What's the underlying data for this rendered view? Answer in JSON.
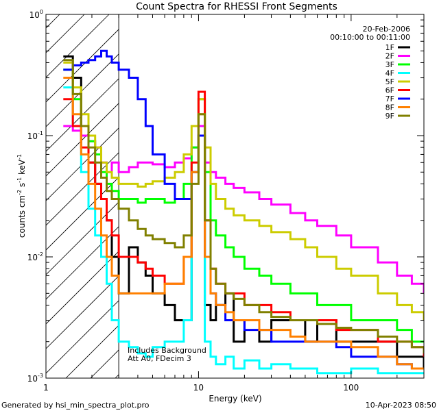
{
  "chart_data": {
    "type": "line",
    "title": "Count Spectra for RHESSI Front Segments",
    "xlabel": "Energy (keV)",
    "ylabel": {
      "base": "counts cm",
      "sup1": "-2",
      "mid1": " s",
      "sup2": "-1",
      "mid2": " keV",
      "sup3": "-1"
    },
    "xscale": "log",
    "yscale": "log",
    "xlim": [
      1,
      300
    ],
    "ylim": [
      0.001,
      1
    ],
    "x_ticks": [
      {
        "value": 1,
        "label": "1"
      },
      {
        "value": 10,
        "label": "10"
      },
      {
        "value": 100,
        "label": "100"
      }
    ],
    "y_ticks": [
      {
        "value": 1,
        "base": "10",
        "exp": "0"
      },
      {
        "value": 0.1,
        "base": "10",
        "exp": "-1"
      },
      {
        "value": 0.01,
        "base": "10",
        "exp": "-2"
      },
      {
        "value": 0.001,
        "base": "10",
        "exp": "-3"
      }
    ],
    "hatched_region": {
      "x_range": [
        1,
        3
      ]
    },
    "date_text": "20-Feb-2006",
    "time_text": "00:10:00 to 00:11:00",
    "annotations": [
      "Includes Background",
      "Att A0, FDecim 3"
    ],
    "legend_position": "top-right",
    "series": [
      {
        "name": "1F",
        "color": "#000000",
        "x": [
          1.3,
          1.5,
          1.7,
          1.9,
          2.1,
          2.3,
          2.5,
          2.7,
          3.0,
          3.5,
          4,
          4.5,
          5,
          6,
          7,
          8,
          9,
          10,
          11,
          12,
          13,
          15,
          17,
          20,
          25,
          30,
          40,
          50,
          60,
          80,
          100,
          150,
          200,
          250,
          300
        ],
        "y": [
          0.45,
          0.3,
          0.1,
          0.06,
          0.04,
          0.03,
          0.02,
          0.01,
          0.005,
          0.012,
          0.009,
          0.007,
          0.005,
          0.004,
          0.003,
          0.003,
          0.05,
          0.1,
          0.004,
          0.003,
          0.004,
          0.005,
          0.002,
          0.003,
          0.002,
          0.003,
          0.003,
          0.002,
          0.003,
          0.002,
          0.002,
          0.002,
          0.0015,
          0.0015,
          0.0012
        ]
      },
      {
        "name": "2F",
        "color": "#ff00ff",
        "x": [
          1.3,
          1.5,
          1.7,
          1.9,
          2.1,
          2.3,
          2.5,
          2.7,
          3.0,
          3.5,
          4,
          4.5,
          5,
          6,
          7,
          8,
          9,
          10,
          11,
          12,
          13,
          15,
          17,
          20,
          25,
          30,
          40,
          50,
          60,
          80,
          100,
          150,
          200,
          250,
          300
        ],
        "y": [
          0.12,
          0.11,
          0.1,
          0.09,
          0.08,
          0.06,
          0.05,
          0.06,
          0.05,
          0.055,
          0.06,
          0.06,
          0.058,
          0.055,
          0.06,
          0.065,
          0.08,
          0.12,
          0.06,
          0.05,
          0.045,
          0.04,
          0.037,
          0.034,
          0.03,
          0.027,
          0.023,
          0.02,
          0.018,
          0.015,
          0.012,
          0.009,
          0.007,
          0.006,
          0.005
        ]
      },
      {
        "name": "3F",
        "color": "#00ff00",
        "x": [
          1.3,
          1.5,
          1.7,
          1.9,
          2.1,
          2.3,
          2.5,
          2.7,
          3.0,
          3.5,
          4,
          4.5,
          5,
          6,
          7,
          8,
          9,
          10,
          11,
          12,
          13,
          15,
          17,
          20,
          25,
          30,
          40,
          50,
          60,
          80,
          100,
          150,
          200,
          250,
          300
        ],
        "y": [
          0.35,
          0.2,
          0.12,
          0.09,
          0.07,
          0.05,
          0.04,
          0.035,
          0.03,
          0.03,
          0.028,
          0.03,
          0.03,
          0.028,
          0.03,
          0.04,
          0.08,
          0.2,
          0.05,
          0.02,
          0.015,
          0.012,
          0.01,
          0.008,
          0.007,
          0.006,
          0.005,
          0.005,
          0.004,
          0.004,
          0.003,
          0.003,
          0.0025,
          0.002,
          0.002
        ]
      },
      {
        "name": "4F",
        "color": "#00ffff",
        "x": [
          1.3,
          1.5,
          1.7,
          1.9,
          2.1,
          2.3,
          2.5,
          2.7,
          3.0,
          3.5,
          4,
          4.5,
          5,
          6,
          7,
          8,
          9,
          10,
          11,
          12,
          13,
          15,
          17,
          20,
          25,
          30,
          40,
          50,
          60,
          80,
          100,
          150,
          200,
          250,
          300
        ],
        "y": [
          0.25,
          0.12,
          0.05,
          0.025,
          0.015,
          0.01,
          0.006,
          0.003,
          0.002,
          0.0018,
          0.0016,
          0.0015,
          0.0018,
          0.002,
          0.002,
          0.003,
          0.05,
          0.1,
          0.002,
          0.0015,
          0.0013,
          0.0015,
          0.0012,
          0.0014,
          0.0012,
          0.0013,
          0.0012,
          0.0012,
          0.0011,
          0.0011,
          0.0012,
          0.0011,
          0.0011,
          0.0011,
          0.0011
        ]
      },
      {
        "name": "5F",
        "color": "#cccc00",
        "x": [
          1.3,
          1.5,
          1.7,
          1.9,
          2.1,
          2.3,
          2.5,
          2.7,
          3.0,
          3.5,
          4,
          4.5,
          5,
          6,
          7,
          8,
          9,
          10,
          11,
          12,
          13,
          15,
          17,
          20,
          25,
          30,
          40,
          50,
          60,
          80,
          100,
          150,
          200,
          250,
          300
        ],
        "y": [
          0.4,
          0.25,
          0.15,
          0.1,
          0.08,
          0.06,
          0.05,
          0.045,
          0.04,
          0.04,
          0.038,
          0.04,
          0.042,
          0.045,
          0.05,
          0.07,
          0.12,
          0.2,
          0.08,
          0.04,
          0.03,
          0.025,
          0.022,
          0.02,
          0.018,
          0.016,
          0.014,
          0.012,
          0.01,
          0.008,
          0.007,
          0.005,
          0.004,
          0.0035,
          0.003
        ]
      },
      {
        "name": "6F",
        "color": "#ff0000",
        "x": [
          1.3,
          1.5,
          1.7,
          1.9,
          2.1,
          2.3,
          2.5,
          2.7,
          3.0,
          3.5,
          4,
          4.5,
          5,
          6,
          7,
          8,
          9,
          10,
          11,
          12,
          13,
          15,
          17,
          20,
          25,
          30,
          40,
          50,
          60,
          80,
          100,
          150,
          200,
          250,
          300
        ],
        "y": [
          0.2,
          0.12,
          0.08,
          0.06,
          0.04,
          0.03,
          0.02,
          0.015,
          0.01,
          0.01,
          0.009,
          0.008,
          0.007,
          0.006,
          0.006,
          0.01,
          0.06,
          0.23,
          0.02,
          0.008,
          0.006,
          0.005,
          0.005,
          0.004,
          0.004,
          0.0035,
          0.003,
          0.003,
          0.003,
          0.0025,
          0.0025,
          0.002,
          0.002,
          0.0018,
          0.0015
        ]
      },
      {
        "name": "7F",
        "color": "#0000ff",
        "x": [
          1.3,
          1.5,
          1.7,
          1.9,
          2.1,
          2.3,
          2.5,
          2.7,
          3.0,
          3.5,
          4,
          4.5,
          5,
          6,
          7,
          8,
          9,
          10,
          11,
          12,
          13,
          15,
          17,
          20,
          25,
          30,
          40,
          50,
          60,
          80,
          100,
          150,
          200,
          250,
          300
        ],
        "y": [
          0.35,
          0.38,
          0.4,
          0.42,
          0.45,
          0.5,
          0.45,
          0.4,
          0.35,
          0.3,
          0.2,
          0.12,
          0.07,
          0.04,
          0.03,
          0.03,
          0.05,
          0.1,
          0.01,
          0.005,
          0.004,
          0.003,
          0.003,
          0.0025,
          0.0025,
          0.002,
          0.002,
          0.002,
          0.002,
          0.0018,
          0.0015,
          0.0015,
          0.0013,
          0.0012,
          0.0012
        ]
      },
      {
        "name": "8F",
        "color": "#ff8000",
        "x": [
          1.3,
          1.5,
          1.7,
          1.9,
          2.1,
          2.3,
          2.5,
          2.7,
          3.0,
          3.5,
          4,
          4.5,
          5,
          6,
          7,
          8,
          9,
          10,
          11,
          12,
          13,
          15,
          17,
          20,
          25,
          30,
          40,
          50,
          60,
          80,
          100,
          150,
          200,
          250,
          300
        ],
        "y": [
          0.3,
          0.15,
          0.07,
          0.04,
          0.025,
          0.015,
          0.01,
          0.007,
          0.005,
          0.005,
          0.005,
          0.005,
          0.005,
          0.006,
          0.006,
          0.01,
          0.05,
          0.15,
          0.01,
          0.005,
          0.004,
          0.0035,
          0.003,
          0.003,
          0.0025,
          0.0025,
          0.0022,
          0.002,
          0.002,
          0.002,
          0.0018,
          0.0015,
          0.0013,
          0.0012,
          0.0012
        ]
      },
      {
        "name": "9F",
        "color": "#808000",
        "x": [
          1.3,
          1.5,
          1.7,
          1.9,
          2.1,
          2.3,
          2.5,
          2.7,
          3.0,
          3.5,
          4,
          4.5,
          5,
          6,
          7,
          8,
          9,
          10,
          11,
          12,
          13,
          15,
          17,
          20,
          25,
          30,
          40,
          50,
          60,
          80,
          100,
          150,
          200,
          250,
          300
        ],
        "y": [
          0.42,
          0.22,
          0.12,
          0.08,
          0.06,
          0.045,
          0.035,
          0.03,
          0.025,
          0.02,
          0.017,
          0.015,
          0.014,
          0.013,
          0.012,
          0.015,
          0.04,
          0.15,
          0.02,
          0.008,
          0.006,
          0.005,
          0.0045,
          0.004,
          0.0035,
          0.0032,
          0.003,
          0.003,
          0.0028,
          0.0026,
          0.0025,
          0.0022,
          0.002,
          0.0018,
          0.0016
        ]
      }
    ]
  },
  "footer": {
    "generated_by": "Generated by hsi_min_spectra_plot.pro",
    "timestamp": "10-Apr-2023 08:50"
  }
}
